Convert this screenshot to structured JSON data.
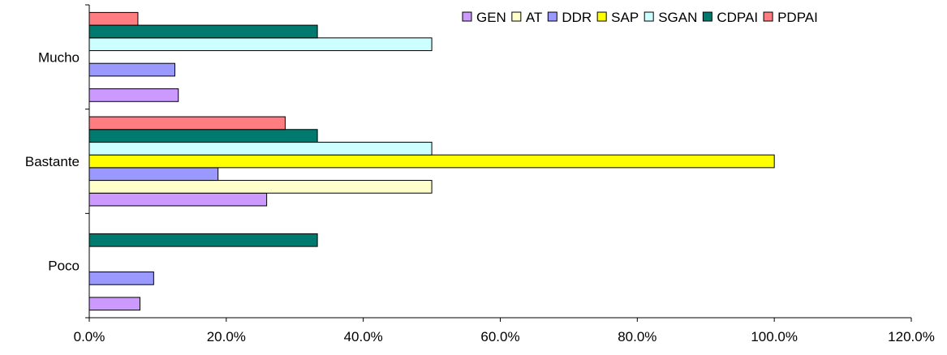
{
  "chart_data": {
    "type": "bar",
    "orientation": "horizontal",
    "title": "",
    "xlabel": "",
    "ylabel": "",
    "categories": [
      "Mucho",
      "Bastante",
      "Poco"
    ],
    "xlim": [
      0,
      120
    ],
    "xticks": [
      0,
      20,
      40,
      60,
      80,
      100,
      120
    ],
    "xtick_labels": [
      "0.0%",
      "20.0%",
      "40.0%",
      "60.0%",
      "80.0%",
      "100.0%",
      "120.0%"
    ],
    "grid": false,
    "legend_position": "top-right",
    "series": [
      {
        "name": "GEN",
        "color": "#cc99ff",
        "values": [
          13.0,
          25.9,
          7.4
        ]
      },
      {
        "name": "AT",
        "color": "#ffffcc",
        "values": [
          0,
          50.0,
          0
        ]
      },
      {
        "name": "DDR",
        "color": "#9999ff",
        "values": [
          12.5,
          18.8,
          9.4
        ]
      },
      {
        "name": "SAP",
        "color": "#ffff00",
        "values": [
          0,
          100.0,
          0
        ]
      },
      {
        "name": "SGAN",
        "color": "#ccffff",
        "values": [
          50.0,
          50.0,
          0
        ]
      },
      {
        "name": "CDPAI",
        "color": "#007a6e",
        "values": [
          33.3,
          33.3,
          33.3
        ]
      },
      {
        "name": "PDPAI",
        "color": "#ff7c80",
        "values": [
          7.1,
          28.6,
          0
        ]
      }
    ]
  }
}
